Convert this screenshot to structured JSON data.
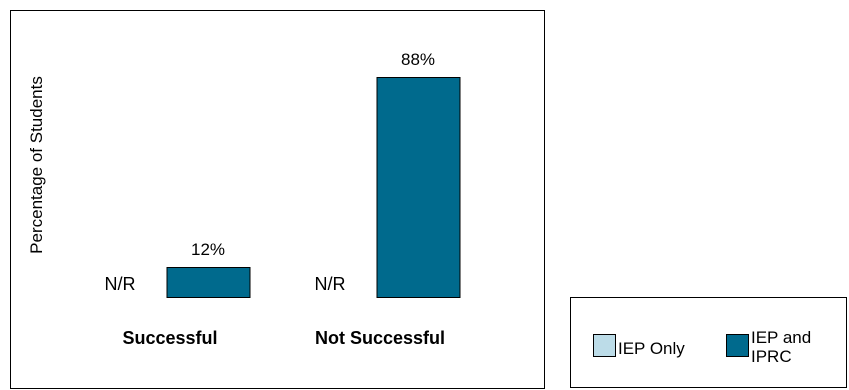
{
  "chart_data": {
    "type": "bar",
    "ylabel": "Percentage of Students",
    "categories": [
      "Successful",
      "Not Successful"
    ],
    "ylim": [
      0,
      100
    ],
    "series": [
      {
        "name": "IEP Only",
        "color": "#bcdce8",
        "values": [
          null,
          null
        ],
        "labels": [
          "N/R",
          "N/R"
        ]
      },
      {
        "name": "IEP and IPRC",
        "color": "#006a8d",
        "values": [
          12,
          88
        ],
        "labels": [
          "12%",
          "88%"
        ]
      }
    ],
    "legend_position": "bottom-right"
  },
  "legend": {
    "items": [
      {
        "name": "IEP Only",
        "line1": "IEP Only",
        "line2": ""
      },
      {
        "name": "IEP and IPRC",
        "line1": "IEP and",
        "line2": "IPRC"
      }
    ]
  }
}
